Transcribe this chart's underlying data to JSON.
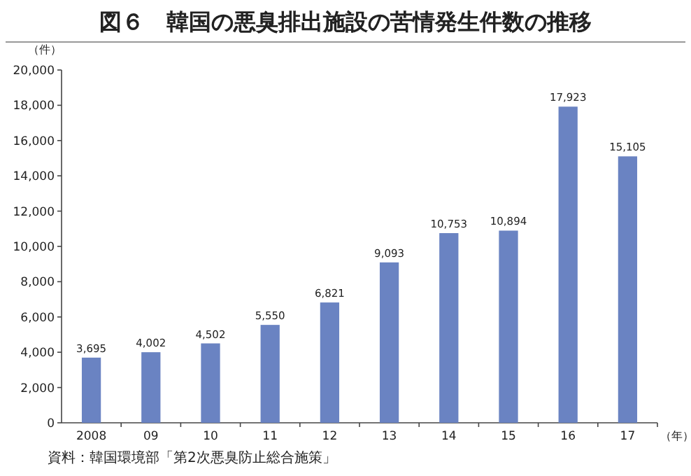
{
  "chart_data": {
    "type": "bar",
    "title": "図６　韓国の悪臭排出施設の苦情発生件数の推移",
    "ylabel": "（件）",
    "xlabel": "（年）",
    "annotations": [
      "資料：韓国環境部「第2次悪臭防止総合施策」"
    ],
    "categories": [
      "2008",
      "09",
      "10",
      "11",
      "12",
      "13",
      "14",
      "15",
      "16",
      "17"
    ],
    "values": [
      3695,
      4002,
      4502,
      5550,
      6821,
      9093,
      10753,
      10894,
      17923,
      15105
    ],
    "value_labels": [
      "3,695",
      "4,002",
      "4,502",
      "5,550",
      "6,821",
      "9,093",
      "10,753",
      "10,894",
      "17,923",
      "15,105"
    ],
    "color": "#6a83c2",
    "ylim": [
      0,
      20000
    ],
    "yticks": [
      0,
      {
        "value": 2000,
        "label": "2,000"
      },
      {
        "value": 4000,
        "label": "4,000"
      },
      {
        "value": 6000,
        "label": "6,000"
      },
      {
        "value": 8000,
        "label": "8,000"
      },
      {
        "value": 10000,
        "label": "10,000"
      },
      {
        "value": 12000,
        "label": "12,000"
      },
      {
        "value": 14000,
        "label": "14,000"
      },
      {
        "value": 16000,
        "label": "16,000"
      },
      {
        "value": 18000,
        "label": "18,000"
      },
      {
        "value": 20000,
        "label": "20,000"
      }
    ]
  }
}
